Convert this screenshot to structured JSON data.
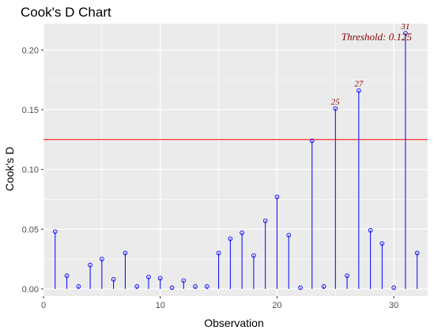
{
  "chart_data": {
    "type": "scatter",
    "title": "Cook's D Chart",
    "xlabel": "Observation",
    "ylabel": "Cook's D",
    "xlim": [
      0,
      32.9
    ],
    "ylim": [
      -0.006,
      0.222
    ],
    "x_ticks": [
      0,
      10,
      20,
      30
    ],
    "x_tick_labels": [
      "0",
      "10",
      "20",
      "30"
    ],
    "y_ticks": [
      0.0,
      0.05,
      0.1,
      0.15,
      0.2
    ],
    "y_tick_labels": [
      "0.00",
      "0.05",
      "0.10",
      "0.15",
      "0.20"
    ],
    "grid": true,
    "threshold": 0.125,
    "threshold_label": "Threshold: 0.125",
    "x": [
      1,
      2,
      3,
      4,
      5,
      6,
      7,
      8,
      9,
      10,
      11,
      12,
      13,
      14,
      15,
      16,
      17,
      18,
      19,
      20,
      21,
      22,
      23,
      24,
      25,
      26,
      27,
      28,
      29,
      30,
      31,
      32
    ],
    "values": [
      0.048,
      0.011,
      0.002,
      0.02,
      0.025,
      0.008,
      0.03,
      0.002,
      0.01,
      0.009,
      0.001,
      0.007,
      0.002,
      0.002,
      0.03,
      0.042,
      0.047,
      0.028,
      0.057,
      0.077,
      0.045,
      0.001,
      0.124,
      0.002,
      0.151,
      0.011,
      0.166,
      0.049,
      0.038,
      0.001,
      0.214,
      0.03
    ],
    "annotations": [
      {
        "x": 25,
        "y": 0.151,
        "text": "25"
      },
      {
        "x": 27,
        "y": 0.166,
        "text": "27"
      },
      {
        "x": 31,
        "y": 0.214,
        "text": "31"
      }
    ],
    "colors": {
      "stem": "#0000ff",
      "point": "#0000ff",
      "threshold_line": "#ff0000",
      "annotation_text": "#8b0000",
      "panel_bg": "#ebebeb",
      "grid": "#ffffff"
    }
  }
}
